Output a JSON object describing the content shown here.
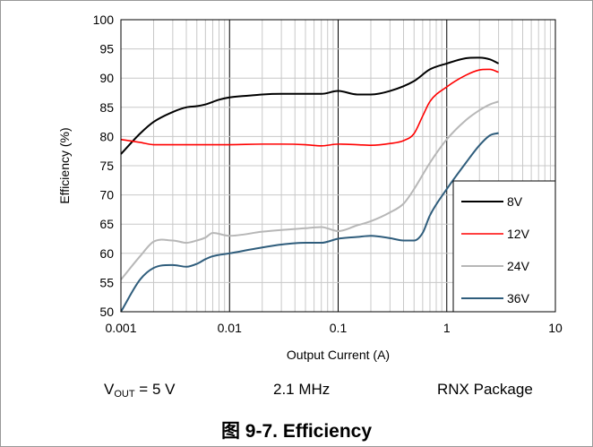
{
  "chart_data": {
    "type": "line",
    "title": "",
    "xlabel": "Output Current (A)",
    "ylabel": "Efficiency (%)",
    "xscale": "log",
    "xlim": [
      0.001,
      10
    ],
    "ylim": [
      50,
      100
    ],
    "x_tick_labels": [
      "0.001",
      "0.01",
      "0.1",
      "1",
      "10"
    ],
    "y_tick_labels": [
      "50",
      "55",
      "60",
      "65",
      "70",
      "75",
      "80",
      "85",
      "90",
      "95",
      "100"
    ],
    "grid": true,
    "legend_position": "bottom-right",
    "series": [
      {
        "name": "8V",
        "color": "#000000",
        "x": [
          0.001,
          0.0015,
          0.002,
          0.003,
          0.004,
          0.005,
          0.006,
          0.008,
          0.01,
          0.015,
          0.02,
          0.03,
          0.05,
          0.07,
          0.1,
          0.15,
          0.2,
          0.3,
          0.5,
          0.7,
          1,
          1.5,
          2,
          2.5,
          3
        ],
        "y": [
          77,
          80.5,
          82.5,
          84.2,
          85,
          85.2,
          85.5,
          86.3,
          86.7,
          87,
          87.2,
          87.3,
          87.3,
          87.3,
          87.8,
          87.2,
          87.2,
          87.8,
          89.5,
          91.5,
          92.5,
          93.4,
          93.5,
          93.2,
          92.5
        ]
      },
      {
        "name": "12V",
        "color": "#ff0000",
        "x": [
          0.001,
          0.0015,
          0.002,
          0.003,
          0.005,
          0.01,
          0.02,
          0.03,
          0.05,
          0.07,
          0.1,
          0.15,
          0.2,
          0.3,
          0.4,
          0.5,
          0.6,
          0.7,
          1,
          1.5,
          2,
          2.5,
          3
        ],
        "y": [
          79.5,
          79,
          78.6,
          78.6,
          78.6,
          78.6,
          78.7,
          78.7,
          78.6,
          78.4,
          78.7,
          78.6,
          78.5,
          78.8,
          79.3,
          80.5,
          83.5,
          86,
          88.5,
          90.5,
          91.4,
          91.5,
          91
        ],
        "stroke_width": 1.6
      },
      {
        "name": "24V",
        "color": "#b7b7b7",
        "x": [
          0.001,
          0.0015,
          0.002,
          0.003,
          0.004,
          0.005,
          0.006,
          0.007,
          0.01,
          0.02,
          0.03,
          0.05,
          0.07,
          0.1,
          0.15,
          0.2,
          0.3,
          0.4,
          0.5,
          0.7,
          1,
          1.5,
          2,
          2.5,
          3
        ],
        "y": [
          55.5,
          59.5,
          62,
          62.2,
          61.8,
          62.2,
          62.7,
          63.5,
          63,
          63.7,
          64,
          64.3,
          64.5,
          63.8,
          64.8,
          65.5,
          67,
          68.5,
          71,
          75.5,
          79.5,
          82.8,
          84.5,
          85.5,
          86
        ]
      },
      {
        "name": "36V",
        "color": "#2f5d7c",
        "x": [
          0.001,
          0.0015,
          0.002,
          0.003,
          0.004,
          0.005,
          0.006,
          0.007,
          0.01,
          0.02,
          0.03,
          0.05,
          0.07,
          0.1,
          0.15,
          0.2,
          0.3,
          0.4,
          0.5,
          0.6,
          0.7,
          1,
          1.5,
          2,
          2.5,
          3
        ],
        "y": [
          49.5,
          55.5,
          57.5,
          58,
          57.7,
          58.2,
          59,
          59.5,
          60,
          61,
          61.5,
          61.8,
          61.8,
          62.5,
          62.8,
          63,
          62.6,
          62.2,
          62.2,
          63.5,
          66.5,
          71,
          75.5,
          78.5,
          80.2,
          80.6
        ]
      }
    ]
  },
  "conditions": {
    "vout_prefix": "V",
    "vout_subscript": "OUT",
    "vout_value": " = 5 V",
    "frequency": "2.1 MHz",
    "package": "RNX Package"
  },
  "caption": "图 9-7. Efficiency"
}
